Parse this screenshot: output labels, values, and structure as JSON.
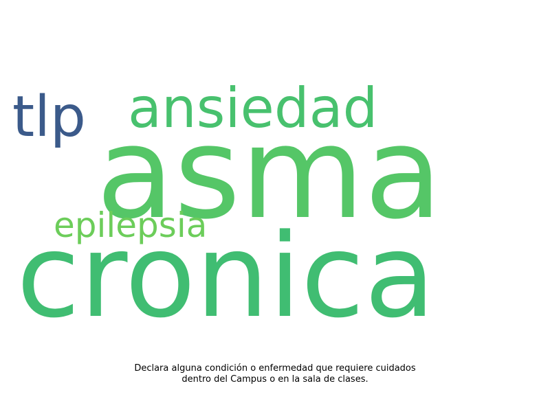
{
  "word_cloud": {
    "words": [
      {
        "id": "asma",
        "text": "asma",
        "color": "#55c667"
      },
      {
        "id": "cronica",
        "text": "cronica",
        "color": "#40bd72"
      },
      {
        "id": "ansiedad",
        "text": "ansiedad",
        "color": "#48c16e"
      },
      {
        "id": "tlp",
        "text": "tlp",
        "color": "#3b5a8a"
      },
      {
        "id": "epilepsia",
        "text": "epilepsia",
        "color": "#6ccd5a"
      }
    ]
  },
  "caption": {
    "line1": "Declara alguna condición o enfermedad que requiere cuidados",
    "line2": "dentro del Campus o en la sala de clases."
  }
}
